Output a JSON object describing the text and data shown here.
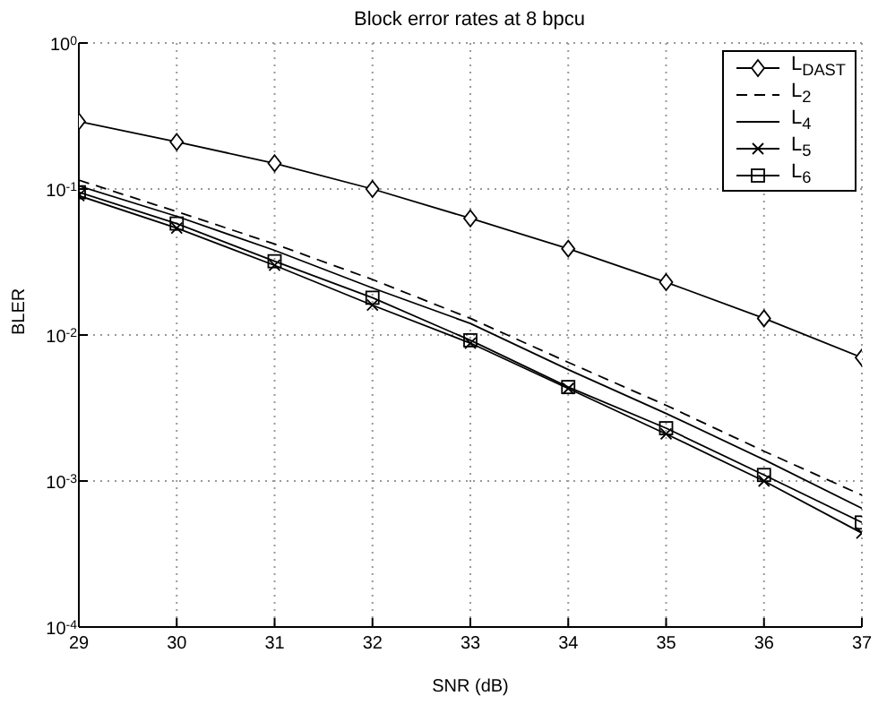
{
  "chart_data": {
    "type": "line",
    "title": "Block error rates at 8 bpcu",
    "xlabel": "SNR (dB)",
    "ylabel": "BLER",
    "x": [
      29,
      30,
      31,
      32,
      33,
      34,
      35,
      36,
      37
    ],
    "series": [
      {
        "name": "L$_{DAST}$",
        "color": "#000000",
        "marker": "diamond",
        "line_style": "solid",
        "values": [
          0.29,
          0.21,
          0.15,
          0.1,
          0.063,
          0.039,
          0.023,
          0.013,
          0.007
        ]
      },
      {
        "name": "L$_{2}$",
        "color": "#000000",
        "marker": "none",
        "line_style": "dashed",
        "values": [
          0.115,
          0.07,
          0.042,
          0.024,
          0.013,
          0.0065,
          0.0033,
          0.0016,
          0.0008
        ]
      },
      {
        "name": "L$_{4}$",
        "color": "#000000",
        "marker": "none",
        "line_style": "solid",
        "values": [
          0.105,
          0.065,
          0.038,
          0.021,
          0.012,
          0.0058,
          0.0029,
          0.0014,
          0.00065
        ]
      },
      {
        "name": "L$_{5}$",
        "color": "#000000",
        "marker": "cross",
        "line_style": "solid",
        "values": [
          0.09,
          0.054,
          0.03,
          0.016,
          0.0088,
          0.0043,
          0.0021,
          0.001,
          0.00044
        ]
      },
      {
        "name": "L$_{6}$",
        "color": "#000000",
        "marker": "square",
        "line_style": "solid",
        "values": [
          0.095,
          0.058,
          0.032,
          0.018,
          0.0092,
          0.0044,
          0.0023,
          0.0011,
          0.00052
        ]
      }
    ],
    "xlim": [
      29,
      37
    ],
    "xticks": [
      29,
      30,
      31,
      32,
      33,
      34,
      35,
      36,
      37
    ],
    "ylim": [
      0.0001,
      1
    ],
    "yticks": [
      {
        "value": 0.0001,
        "label": "10$^{-4}$"
      },
      {
        "value": 0.001,
        "label": "10$^{-3}$"
      },
      {
        "value": 0.01,
        "label": "10$^{-2}$"
      },
      {
        "value": 0.1,
        "label": "10$^{-1}$"
      },
      {
        "value": 1,
        "label": "10$^{0}$"
      }
    ],
    "log": "y",
    "grid": true,
    "legend": "top right"
  }
}
